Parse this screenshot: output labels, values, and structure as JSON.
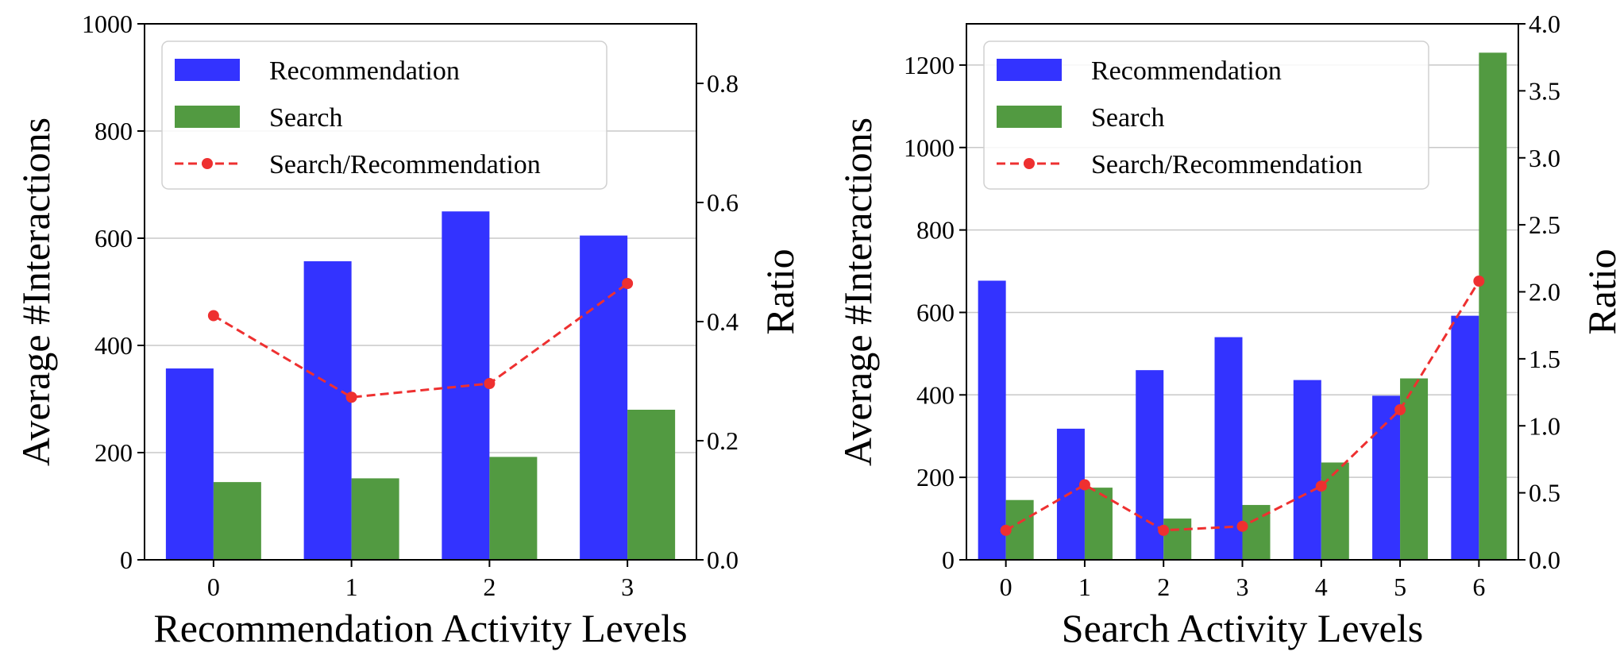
{
  "chart_data": [
    {
      "type": "bar",
      "xlabel": "Recommendation Activity Levels",
      "ylabel": "Average #Interactions",
      "ylabel_right": "Ratio",
      "categories": [
        "0",
        "1",
        "2",
        "3"
      ],
      "ylim": [
        0,
        1000
      ],
      "yticks": [
        0,
        200,
        400,
        600,
        800,
        1000
      ],
      "ylim_right": [
        0,
        0.9
      ],
      "yticks_right": [
        "0.0",
        "0.2",
        "0.4",
        "0.6",
        "0.8"
      ],
      "grid": true,
      "legend_position": "top-left",
      "series": [
        {
          "name": "Recommendation",
          "kind": "bar",
          "axis": "left",
          "color": "#3333ff",
          "values": [
            357,
            557,
            650,
            605
          ]
        },
        {
          "name": "Search",
          "kind": "bar",
          "axis": "left",
          "color": "#529a41",
          "values": [
            145,
            152,
            192,
            280
          ]
        },
        {
          "name": "Search/Recommendation",
          "kind": "line",
          "axis": "right",
          "color": "#ee3030",
          "style": "dashed",
          "marker": "circle",
          "values": [
            0.41,
            0.273,
            0.296,
            0.464
          ]
        }
      ]
    },
    {
      "type": "bar",
      "xlabel": "Search Activity Levels",
      "ylabel": "Average #Interactions",
      "ylabel_right": "Ratio",
      "categories": [
        "0",
        "1",
        "2",
        "3",
        "4",
        "5",
        "6"
      ],
      "ylim": [
        0,
        1300
      ],
      "yticks": [
        0,
        200,
        400,
        600,
        800,
        1000,
        1200
      ],
      "ylim_right": [
        0,
        4.0
      ],
      "yticks_right": [
        "0.0",
        "0.5",
        "1.0",
        "1.5",
        "2.0",
        "2.5",
        "3.0",
        "3.5",
        "4.0"
      ],
      "grid": true,
      "legend_position": "top-left",
      "series": [
        {
          "name": "Recommendation",
          "kind": "bar",
          "axis": "left",
          "color": "#3333ff",
          "values": [
            677,
            318,
            460,
            540,
            436,
            398,
            592
          ]
        },
        {
          "name": "Search",
          "kind": "bar",
          "axis": "left",
          "color": "#529a41",
          "values": [
            145,
            175,
            100,
            133,
            236,
            440,
            1230
          ]
        },
        {
          "name": "Search/Recommendation",
          "kind": "line",
          "axis": "right",
          "color": "#ee3030",
          "style": "dashed",
          "marker": "circle",
          "values": [
            0.22,
            0.56,
            0.22,
            0.25,
            0.55,
            1.12,
            2.08
          ]
        }
      ]
    }
  ]
}
